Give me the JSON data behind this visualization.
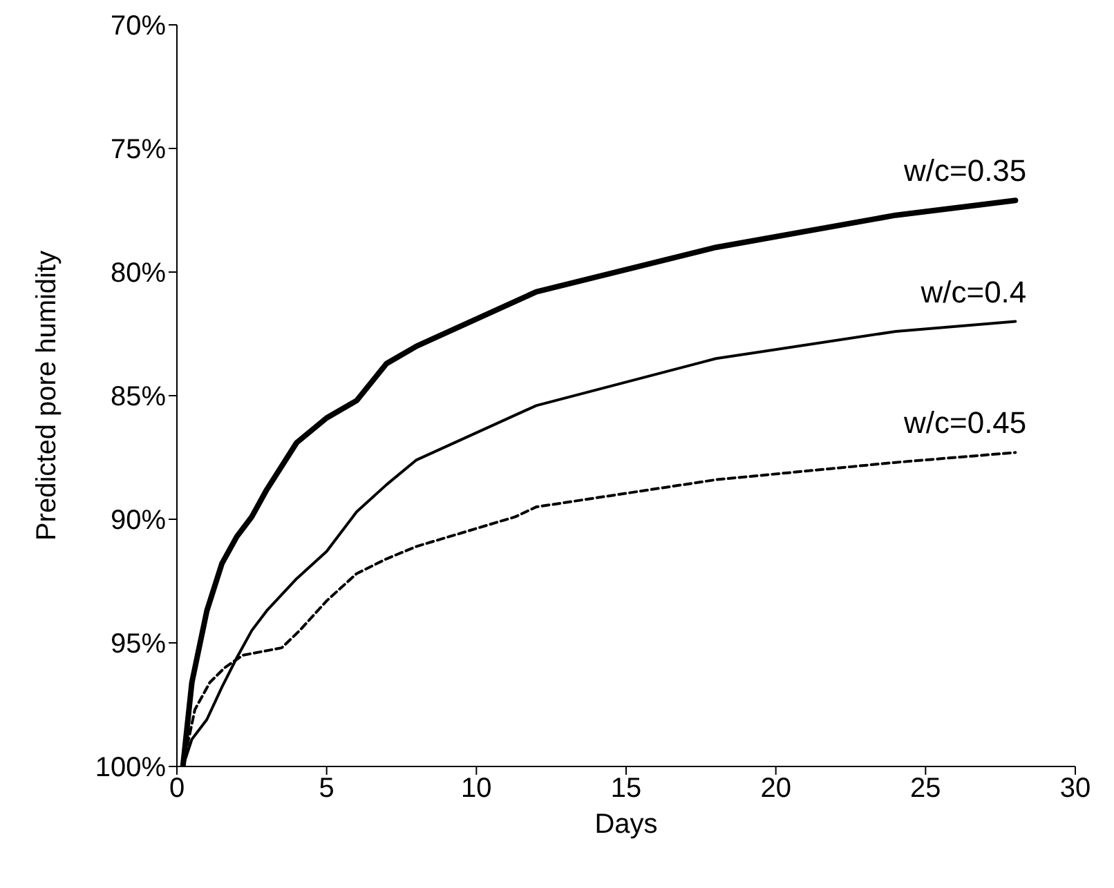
{
  "chart_data": {
    "type": "line",
    "xlabel": "Days",
    "ylabel": "Predicted pore humidity",
    "xlim": [
      0,
      30
    ],
    "xticks": [
      0,
      5,
      10,
      15,
      20,
      25,
      30
    ],
    "ylim": [
      100,
      70
    ],
    "yticks": [
      {
        "value": 70,
        "label": "70%"
      },
      {
        "value": 75,
        "label": "75%"
      },
      {
        "value": 80,
        "label": "80%"
      },
      {
        "value": 85,
        "label": "85%"
      },
      {
        "value": 90,
        "label": "90%"
      },
      {
        "value": 95,
        "label": "95%"
      },
      {
        "value": 100,
        "label": "100%"
      }
    ],
    "legend": false,
    "marker": "none",
    "series": [
      {
        "name": "w/c=0.35",
        "color": "#000000",
        "line_style": "solid",
        "x": [
          0.2,
          0.5,
          1,
          1.5,
          2,
          2.5,
          3,
          4,
          5,
          6,
          7,
          8,
          12,
          18,
          24,
          28
        ],
        "values": [
          100,
          96.6,
          93.7,
          91.8,
          90.7,
          89.9,
          88.8,
          86.9,
          85.9,
          85.2,
          83.7,
          83.0,
          80.8,
          79.0,
          77.7,
          77.1
        ]
      },
      {
        "name": "w/c=0.4",
        "color": "#000000",
        "line_style": "solid",
        "x": [
          0.2,
          0.5,
          1,
          1.5,
          2,
          2.5,
          3,
          4,
          5,
          6,
          7,
          8,
          12,
          18,
          24,
          28
        ],
        "values": [
          100,
          98.9,
          98.1,
          96.8,
          95.6,
          94.5,
          93.7,
          92.4,
          91.3,
          89.7,
          88.6,
          87.6,
          85.4,
          83.5,
          82.4,
          82.0
        ]
      },
      {
        "name": "w/c=0.45",
        "color": "#000000",
        "line_style": "dashed",
        "x": [
          0.2,
          0.6,
          1.1,
          1.6,
          2.2,
          3.5,
          4.1,
          5,
          6,
          7,
          8,
          11.3,
          12,
          18,
          24,
          28
        ],
        "values": [
          100,
          97.7,
          96.6,
          96.0,
          95.5,
          95.2,
          94.5,
          93.3,
          92.2,
          91.6,
          91.1,
          89.9,
          89.5,
          88.4,
          87.7,
          87.3
        ]
      }
    ]
  }
}
